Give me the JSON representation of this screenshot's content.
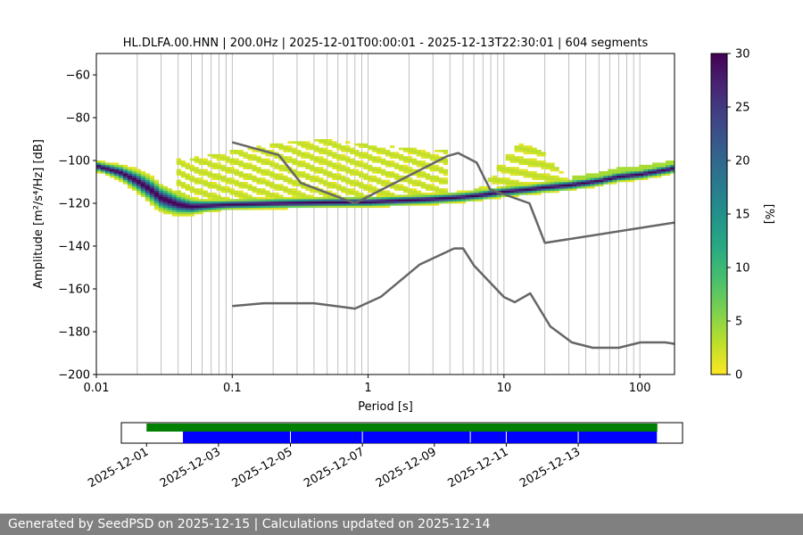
{
  "chart_data": [
    {
      "type": "heatmap",
      "title": "HL.DLFA.00.HNN | 200.0Hz | 2025-12-01T00:00:01 - 2025-12-13T22:30:01 | 604 segments",
      "xlabel": "Period [s]",
      "ylabel": "Amplitude [m²/s⁴/Hz] [dB]",
      "x_scale": "log",
      "xlim": [
        0.01,
        180
      ],
      "ylim": [
        -200,
        -50
      ],
      "x_ticks": [
        {
          "value": 0.01,
          "label": "0.01"
        },
        {
          "value": 0.1,
          "label": "0.1"
        },
        {
          "value": 1,
          "label": "1"
        },
        {
          "value": 10,
          "label": "10"
        },
        {
          "value": 100,
          "label": "100"
        }
      ],
      "y_ticks": [
        {
          "value": -60,
          "label": "−60"
        },
        {
          "value": -80,
          "label": "−80"
        },
        {
          "value": -100,
          "label": "−100"
        },
        {
          "value": -120,
          "label": "−120"
        },
        {
          "value": -140,
          "label": "−140"
        },
        {
          "value": -160,
          "label": "−160"
        },
        {
          "value": -180,
          "label": "−180"
        },
        {
          "value": -200,
          "label": "−200"
        }
      ],
      "grid": "vertical only",
      "colorbar": {
        "label": "[%]",
        "range": [
          0,
          30
        ],
        "ticks": [
          "0",
          "5",
          "10",
          "15",
          "20",
          "25",
          "30"
        ],
        "colormap": "viridis_r"
      },
      "psd_mode": {
        "period": [
          0.01,
          0.015,
          0.02,
          0.025,
          0.03,
          0.04,
          0.05,
          0.07,
          0.1,
          0.2,
          0.5,
          1,
          2,
          3,
          5,
          7,
          10,
          15,
          20,
          30,
          50,
          70,
          100,
          150,
          180
        ],
        "amplitude_db": [
          -103,
          -106,
          -110,
          -114,
          -118,
          -121,
          -122,
          -121.5,
          -121,
          -120.5,
          -120,
          -119.8,
          -119,
          -118.5,
          -117.5,
          -116.5,
          -115,
          -114,
          -113,
          -112,
          -110,
          -108,
          -107,
          -105,
          -104
        ]
      },
      "nhnm": {
        "period": [
          0.1,
          0.22,
          0.32,
          0.8,
          3.8,
          4.6,
          6.3,
          7.9,
          15.4,
          20,
          180
        ],
        "amplitude_db": [
          -91.5,
          -97.4,
          -110.5,
          -120,
          -98,
          -96.5,
          -101,
          -113.5,
          -120,
          -138.5,
          -129
        ]
      },
      "nlnm": {
        "period": [
          0.1,
          0.17,
          0.4,
          0.8,
          1.24,
          2.4,
          4.3,
          5,
          6,
          10,
          12,
          15.6,
          21.9,
          31.6,
          45,
          70,
          101,
          154,
          180
        ],
        "amplitude_db": [
          -168,
          -166.7,
          -166.7,
          -169.2,
          -163.7,
          -148.6,
          -141.1,
          -141.1,
          -149,
          -163.8,
          -166.2,
          -162.1,
          -177.5,
          -185,
          -187.5,
          -187.5,
          -185,
          -185,
          -185.7
        ]
      }
    },
    {
      "type": "timeline",
      "x_ticks": [
        "2025-12-01",
        "2025-12-03",
        "2025-12-05",
        "2025-12-07",
        "2025-12-09",
        "2025-12-11",
        "2025-12-13"
      ],
      "tick_day_offsets": [
        0,
        2,
        4,
        6,
        8,
        10,
        12
      ],
      "xlim_days": [
        -0.7,
        14.9
      ],
      "available_data": {
        "color": "#008000",
        "span_days": [
          0.0,
          14.2
        ]
      },
      "used_segments": {
        "color": "#0000ff",
        "spans_days": [
          [
            1.0,
            4.0
          ],
          [
            4.0,
            6.0
          ],
          [
            6.0,
            9.0
          ],
          [
            9.0,
            10.0
          ],
          [
            10.0,
            12.0
          ],
          [
            12.0,
            14.2
          ]
        ]
      }
    }
  ],
  "footer": "Generated by SeedPSD on 2025-12-15 | Calculations updated on 2025-12-14",
  "colors": {
    "model_line": "#666666",
    "grid": "#b0b0b0",
    "footer_bg": "#808080",
    "available": "#008000",
    "used": "#0000ff"
  }
}
